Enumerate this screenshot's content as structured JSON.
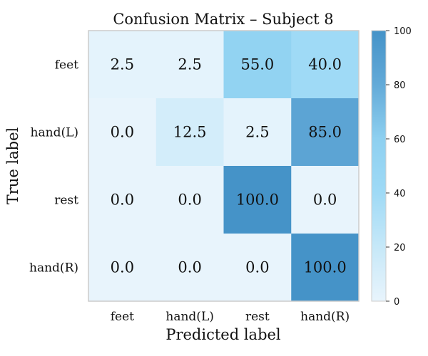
{
  "chart_data": {
    "type": "heatmap",
    "title": "Confusion Matrix – Subject 8",
    "xlabel": "Predicted label",
    "ylabel": "True label",
    "x_categories": [
      "feet",
      "hand(L)",
      "rest",
      "hand(R)"
    ],
    "y_categories": [
      "feet",
      "hand(L)",
      "rest",
      "hand(R)"
    ],
    "values": [
      [
        2.5,
        2.5,
        55.0,
        40.0
      ],
      [
        0.0,
        12.5,
        2.5,
        85.0
      ],
      [
        0.0,
        0.0,
        100.0,
        0.0
      ],
      [
        0.0,
        0.0,
        0.0,
        100.0
      ]
    ],
    "cell_labels": [
      [
        "2.5",
        "2.5",
        "55.0",
        "40.0"
      ],
      [
        "0.0",
        "12.5",
        "2.5",
        "85.0"
      ],
      [
        "0.0",
        "0.0",
        "100.0",
        "0.0"
      ],
      [
        "0.0",
        "0.0",
        "0.0",
        "100.0"
      ]
    ],
    "colorbar": {
      "range": [
        0,
        100
      ],
      "ticks": [
        0,
        20,
        40,
        60,
        80,
        100
      ],
      "tick_labels": [
        "0",
        "20",
        "40",
        "60",
        "80",
        "100"
      ]
    },
    "colormap": [
      "#e8f4fc",
      "#c6e8f8",
      "#9fdaf6",
      "#8ed0f0",
      "#63aad8",
      "#4593c8"
    ],
    "grid": false
  }
}
